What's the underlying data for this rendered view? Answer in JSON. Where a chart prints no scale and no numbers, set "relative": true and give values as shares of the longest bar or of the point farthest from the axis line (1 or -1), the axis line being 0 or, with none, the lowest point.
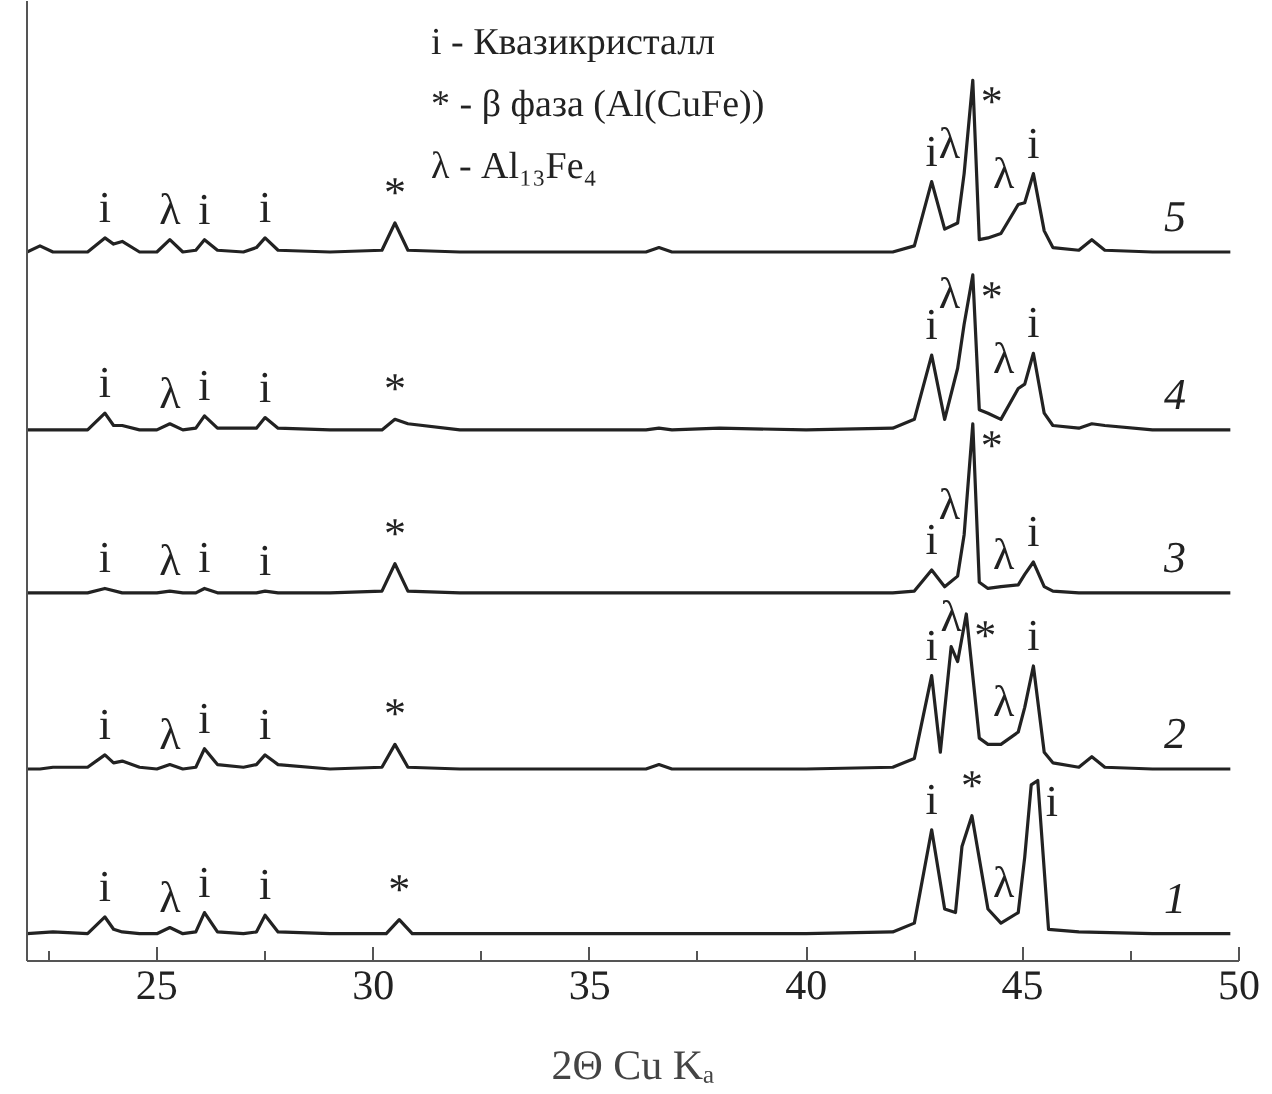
{
  "chart_data": {
    "type": "line",
    "relative": true,
    "xlabel": "2Θ Cu Kₐ",
    "xlim": [
      22,
      50
    ],
    "xticks": [
      {
        "value": 22.5,
        "label": null
      },
      25,
      {
        "value": 27.5,
        "label": null
      },
      30,
      {
        "value": 32.5,
        "label": null
      },
      35,
      {
        "value": 37.5,
        "label": null
      },
      40,
      {
        "value": 42.5,
        "label": null
      },
      45,
      {
        "value": 47.5,
        "label": null
      },
      50
    ],
    "series": [
      {
        "name": "5",
        "color": "#222222",
        "x": [
          22,
          22.3,
          22.6,
          23.4,
          23.8,
          24.0,
          24.2,
          24.6,
          25.0,
          25.3,
          25.6,
          25.9,
          26.1,
          26.4,
          27.0,
          27.3,
          27.5,
          27.8,
          29.0,
          30.2,
          30.5,
          30.8,
          32,
          34,
          36.3,
          36.6,
          36.9,
          38,
          40,
          42,
          42.5,
          42.9,
          43.2,
          43.5,
          43.65,
          43.85,
          44.0,
          44.2,
          44.5,
          44.9,
          45.05,
          45.25,
          45.5,
          45.7,
          46.3,
          46.6,
          46.9,
          48,
          49.8
        ],
        "values": [
          0.805,
          0.812,
          0.805,
          0.805,
          0.821,
          0.814,
          0.817,
          0.805,
          0.805,
          0.819,
          0.805,
          0.807,
          0.819,
          0.807,
          0.805,
          0.81,
          0.821,
          0.807,
          0.805,
          0.807,
          0.838,
          0.807,
          0.805,
          0.805,
          0.805,
          0.81,
          0.805,
          0.805,
          0.805,
          0.805,
          0.812,
          0.885,
          0.831,
          0.838,
          0.894,
          1.0,
          0.819,
          0.821,
          0.826,
          0.859,
          0.861,
          0.894,
          0.829,
          0.81,
          0.807,
          0.819,
          0.807,
          0.805,
          0.805
        ]
      },
      {
        "name": "4",
        "color": "#222222",
        "x": [
          22,
          22.3,
          22.6,
          23.4,
          23.8,
          24.0,
          24.2,
          24.6,
          25.0,
          25.3,
          25.6,
          25.9,
          26.1,
          26.4,
          27.0,
          27.3,
          27.5,
          27.8,
          29.0,
          30.2,
          30.5,
          30.8,
          32,
          34,
          36.3,
          36.6,
          36.9,
          38,
          40,
          42,
          42.5,
          42.9,
          43.2,
          43.5,
          43.65,
          43.85,
          44.0,
          44.2,
          44.5,
          44.9,
          45.05,
          45.25,
          45.5,
          45.7,
          46.3,
          46.6,
          46.9,
          48,
          49.8
        ],
        "values": [
          0.603,
          0.603,
          0.603,
          0.603,
          0.622,
          0.608,
          0.608,
          0.603,
          0.603,
          0.61,
          0.603,
          0.605,
          0.619,
          0.605,
          0.605,
          0.605,
          0.617,
          0.605,
          0.603,
          0.603,
          0.615,
          0.61,
          0.603,
          0.603,
          0.603,
          0.605,
          0.603,
          0.605,
          0.603,
          0.605,
          0.615,
          0.688,
          0.615,
          0.673,
          0.723,
          0.779,
          0.626,
          0.622,
          0.615,
          0.65,
          0.655,
          0.69,
          0.622,
          0.608,
          0.605,
          0.61,
          0.608,
          0.603,
          0.603
        ]
      },
      {
        "name": "3",
        "color": "#222222",
        "x": [
          22,
          23.4,
          23.8,
          24.2,
          25.0,
          25.3,
          25.6,
          25.9,
          26.1,
          26.4,
          27.3,
          27.5,
          27.8,
          29.0,
          30.2,
          30.5,
          30.8,
          32,
          36,
          40,
          42,
          42.5,
          42.9,
          43.2,
          43.5,
          43.65,
          43.85,
          44.0,
          44.2,
          44.5,
          44.9,
          45.05,
          45.25,
          45.5,
          45.7,
          46.3,
          48,
          49.8
        ],
        "values": [
          0.418,
          0.418,
          0.423,
          0.418,
          0.418,
          0.42,
          0.418,
          0.418,
          0.423,
          0.418,
          0.418,
          0.42,
          0.418,
          0.418,
          0.42,
          0.451,
          0.42,
          0.418,
          0.418,
          0.418,
          0.418,
          0.42,
          0.444,
          0.425,
          0.437,
          0.484,
          0.61,
          0.43,
          0.423,
          0.425,
          0.427,
          0.439,
          0.453,
          0.425,
          0.42,
          0.418,
          0.418,
          0.418
        ]
      },
      {
        "name": "2",
        "color": "#222222",
        "x": [
          22,
          22.3,
          22.6,
          23.4,
          23.8,
          24.0,
          24.2,
          24.6,
          25.0,
          25.3,
          25.6,
          25.9,
          26.1,
          26.4,
          27.0,
          27.3,
          27.5,
          27.8,
          29.0,
          30.2,
          30.5,
          30.8,
          32,
          34,
          36.3,
          36.6,
          36.9,
          38,
          40,
          42,
          42.5,
          42.9,
          43.1,
          43.35,
          43.5,
          43.7,
          44.0,
          44.2,
          44.5,
          44.9,
          45.05,
          45.25,
          45.5,
          45.7,
          46.3,
          46.6,
          46.9,
          48,
          49.8
        ],
        "values": [
          0.218,
          0.218,
          0.22,
          0.22,
          0.234,
          0.225,
          0.227,
          0.22,
          0.218,
          0.223,
          0.218,
          0.22,
          0.241,
          0.223,
          0.22,
          0.223,
          0.234,
          0.223,
          0.218,
          0.22,
          0.246,
          0.22,
          0.218,
          0.218,
          0.218,
          0.223,
          0.218,
          0.218,
          0.218,
          0.22,
          0.23,
          0.324,
          0.237,
          0.357,
          0.34,
          0.394,
          0.253,
          0.246,
          0.246,
          0.26,
          0.288,
          0.335,
          0.237,
          0.225,
          0.22,
          0.232,
          0.22,
          0.218,
          0.218
        ]
      },
      {
        "name": "1",
        "color": "#222222",
        "x": [
          22,
          22.6,
          23.4,
          23.8,
          24.0,
          24.2,
          24.6,
          25.0,
          25.3,
          25.6,
          25.9,
          26.1,
          26.4,
          27.0,
          27.3,
          27.5,
          27.8,
          29.0,
          30.3,
          30.6,
          30.9,
          32,
          34,
          36,
          38,
          40,
          42,
          42.5,
          42.9,
          43.2,
          43.45,
          43.6,
          43.83,
          44.2,
          44.5,
          44.9,
          45.05,
          45.2,
          45.35,
          45.6,
          46.3,
          48,
          49.8
        ],
        "values": [
          0.031,
          0.033,
          0.031,
          0.05,
          0.036,
          0.033,
          0.031,
          0.031,
          0.038,
          0.031,
          0.033,
          0.055,
          0.033,
          0.031,
          0.033,
          0.052,
          0.033,
          0.031,
          0.031,
          0.047,
          0.031,
          0.031,
          0.031,
          0.031,
          0.031,
          0.031,
          0.033,
          0.043,
          0.149,
          0.059,
          0.055,
          0.13,
          0.165,
          0.059,
          0.043,
          0.055,
          0.118,
          0.2,
          0.205,
          0.036,
          0.033,
          0.031,
          0.031
        ]
      }
    ],
    "annotations": [
      "i - Квазикристалл",
      "* - β фаза (Al(CuFe))",
      "λ - Al₁₃Fe₄",
      {
        "text": "i",
        "x": 23.8,
        "y": 0.821
      },
      {
        "text": "λ",
        "x": 25.3,
        "y": 0.819
      },
      {
        "text": "i",
        "x": 26.1,
        "y": 0.819
      },
      {
        "text": "i",
        "x": 27.5,
        "y": 0.821
      },
      {
        "text": "*",
        "x": 30.5,
        "y": 0.838
      },
      {
        "text": "i",
        "x": 42.9,
        "y": 0.885
      },
      {
        "text": "λ",
        "x": 43.65,
        "y": 0.894
      },
      {
        "text": "*",
        "x": 43.85,
        "y": 1.0
      },
      {
        "text": "λ",
        "x": 44.9,
        "y": 0.859
      },
      {
        "text": "i",
        "x": 45.25,
        "y": 0.894
      },
      {
        "text": "i",
        "x": 23.8,
        "y": 0.622
      },
      {
        "text": "λ",
        "x": 25.3,
        "y": 0.61
      },
      {
        "text": "i",
        "x": 26.1,
        "y": 0.619
      },
      {
        "text": "i",
        "x": 27.5,
        "y": 0.617
      },
      {
        "text": "*",
        "x": 30.5,
        "y": 0.615
      },
      {
        "text": "i",
        "x": 42.9,
        "y": 0.688
      },
      {
        "text": "λ",
        "x": 43.65,
        "y": 0.723
      },
      {
        "text": "*",
        "x": 43.85,
        "y": 0.779
      },
      {
        "text": "λ",
        "x": 44.9,
        "y": 0.65
      },
      {
        "text": "i",
        "x": 45.25,
        "y": 0.69
      },
      {
        "text": "i",
        "x": 23.8,
        "y": 0.423
      },
      {
        "text": "λ",
        "x": 25.3,
        "y": 0.42
      },
      {
        "text": "i",
        "x": 26.1,
        "y": 0.423
      },
      {
        "text": "i",
        "x": 27.5,
        "y": 0.42
      },
      {
        "text": "*",
        "x": 30.5,
        "y": 0.451
      },
      {
        "text": "i",
        "x": 42.9,
        "y": 0.444
      },
      {
        "text": "λ",
        "x": 43.65,
        "y": 0.484
      },
      {
        "text": "*",
        "x": 43.85,
        "y": 0.61
      },
      {
        "text": "λ",
        "x": 44.9,
        "y": 0.427
      },
      {
        "text": "i",
        "x": 45.25,
        "y": 0.453
      },
      {
        "text": "i",
        "x": 23.8,
        "y": 0.234
      },
      {
        "text": "λ",
        "x": 25.3,
        "y": 0.223
      },
      {
        "text": "i",
        "x": 26.1,
        "y": 0.241
      },
      {
        "text": "i",
        "x": 27.5,
        "y": 0.234
      },
      {
        "text": "*",
        "x": 30.5,
        "y": 0.246
      },
      {
        "text": "i",
        "x": 42.9,
        "y": 0.324
      },
      {
        "text": "λ",
        "x": 43.35,
        "y": 0.357
      },
      {
        "text": "*",
        "x": 43.7,
        "y": 0.394
      },
      {
        "text": "λ",
        "x": 44.9,
        "y": 0.26
      },
      {
        "text": "i",
        "x": 45.25,
        "y": 0.335
      },
      {
        "text": "i",
        "x": 23.8,
        "y": 0.05
      },
      {
        "text": "λ",
        "x": 25.3,
        "y": 0.038
      },
      {
        "text": "i",
        "x": 26.1,
        "y": 0.055
      },
      {
        "text": "i",
        "x": 27.5,
        "y": 0.052
      },
      {
        "text": "*",
        "x": 30.6,
        "y": 0.047
      },
      {
        "text": "i",
        "x": 42.9,
        "y": 0.149
      },
      {
        "text": "*",
        "x": 43.83,
        "y": 0.165
      },
      {
        "text": "λ",
        "x": 44.9,
        "y": 0.055
      },
      {
        "text": "i",
        "x": 45.35,
        "y": 0.205
      }
    ]
  }
}
